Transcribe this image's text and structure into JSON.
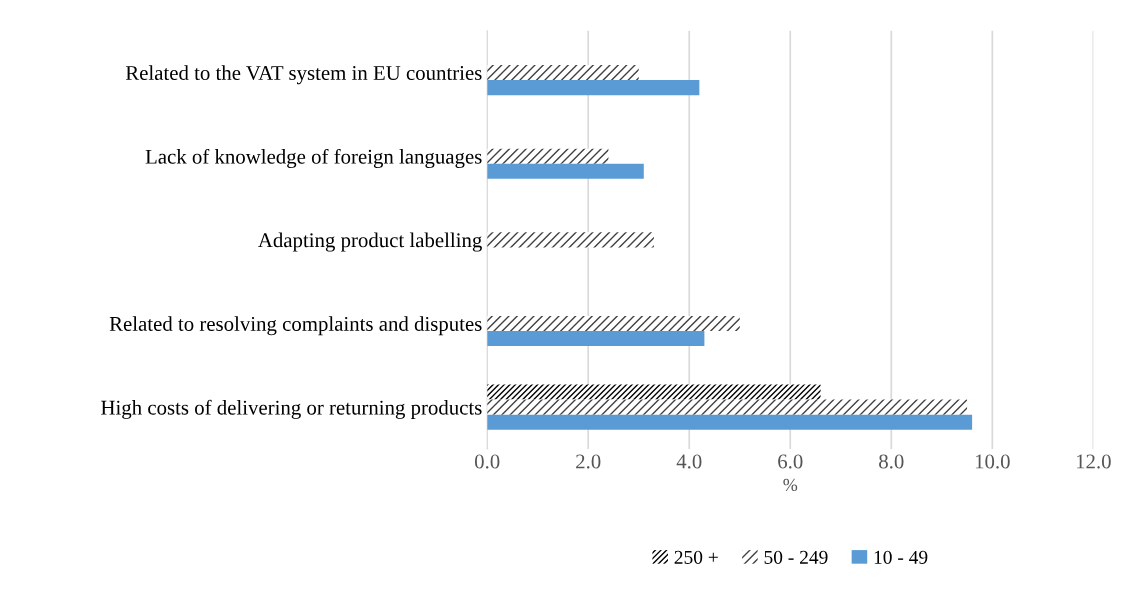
{
  "chart_data": {
    "type": "bar",
    "orientation": "horizontal",
    "categories": [
      "Related to the VAT system in EU countries",
      "Lack of knowledge of foreign languages",
      "Adapting product labelling",
      "Related to resolving complaints and disputes",
      "High costs of delivering or returning products"
    ],
    "series": [
      {
        "name": "250 +",
        "color": "#000000",
        "values": [
          null,
          null,
          null,
          null,
          6.6
        ]
      },
      {
        "name": "50 - 249",
        "color": "#404040",
        "values": [
          3.0,
          2.4,
          3.3,
          5.0,
          9.5
        ]
      },
      {
        "name": "10 - 49",
        "color": "#5b9bd5",
        "values": [
          4.2,
          3.1,
          null,
          4.3,
          9.6
        ]
      }
    ],
    "xlabel": "%",
    "xlim": [
      0,
      12
    ],
    "xticks": [
      {
        "value": 0,
        "label": "0.0"
      },
      {
        "value": 2,
        "label": "2.0"
      },
      {
        "value": 4,
        "label": "4.0"
      },
      {
        "value": 6,
        "label": "6.0"
      },
      {
        "value": 8,
        "label": "8.0"
      },
      {
        "value": 10,
        "label": "10.0"
      },
      {
        "value": 12,
        "label": "12.0"
      }
    ],
    "grid": "x",
    "legend": "bottom"
  }
}
